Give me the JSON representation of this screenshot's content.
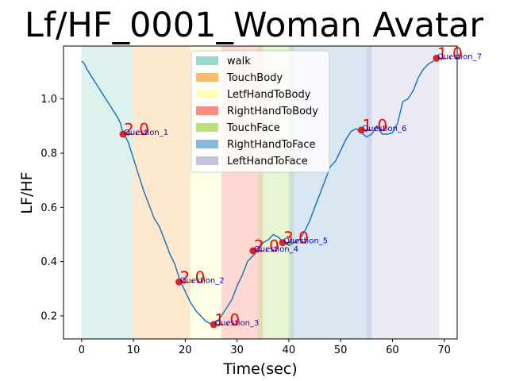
{
  "chart_data": {
    "type": "line",
    "title": "Lf/HF_0001_Woman Avatar",
    "xlabel": "Time(sec)",
    "ylabel": "LF/HF",
    "xlim": [
      -3.5,
      72.5
    ],
    "ylim": [
      0.115,
      1.195
    ],
    "xticks": [
      0,
      10,
      20,
      30,
      40,
      50,
      60,
      70
    ],
    "yticks": [
      0.2,
      0.4,
      0.6,
      0.8,
      1.0
    ],
    "ytick_labels": [
      "0.2",
      "0.4",
      "0.6",
      "0.8",
      "1.0"
    ],
    "grid": false,
    "legend_placement": "upper-center",
    "line_color": "#1f77b4",
    "series": [
      {
        "x": [
          0,
          0.5,
          1,
          2,
          3,
          4,
          5,
          6,
          7,
          7.5,
          8,
          8.5,
          9,
          10,
          11,
          12,
          13,
          14,
          15,
          16,
          17,
          18,
          19,
          20,
          21,
          22,
          23,
          24,
          25,
          25.5,
          26,
          27,
          28,
          29,
          30,
          31,
          32,
          33,
          34,
          35,
          36,
          37,
          38,
          39,
          40,
          41,
          42,
          43,
          44,
          45,
          46,
          47,
          48,
          49,
          50,
          51,
          52,
          53,
          54,
          55,
          56,
          57,
          58,
          59,
          60,
          61,
          62,
          63,
          64,
          65,
          66,
          67,
          68,
          68.5
        ],
        "y": [
          1.14,
          1.13,
          1.11,
          1.08,
          1.05,
          1.02,
          0.99,
          0.96,
          0.93,
          0.91,
          0.87,
          0.86,
          0.84,
          0.78,
          0.72,
          0.66,
          0.61,
          0.56,
          0.53,
          0.48,
          0.43,
          0.39,
          0.33,
          0.29,
          0.25,
          0.22,
          0.2,
          0.18,
          0.17,
          0.168,
          0.175,
          0.2,
          0.23,
          0.26,
          0.31,
          0.35,
          0.4,
          0.42,
          0.44,
          0.47,
          0.48,
          0.5,
          0.49,
          0.47,
          0.46,
          0.47,
          0.48,
          0.51,
          0.55,
          0.6,
          0.65,
          0.7,
          0.75,
          0.77,
          0.81,
          0.85,
          0.88,
          0.89,
          0.875,
          0.86,
          0.87,
          0.9,
          0.87,
          0.87,
          0.875,
          0.91,
          0.99,
          1.0,
          1.03,
          1.08,
          1.11,
          1.13,
          1.14,
          1.15
        ]
      }
    ],
    "phases": [
      {
        "name": "walk",
        "color": "#8dd3c7",
        "start": 0,
        "end": 10
      },
      {
        "name": "TouchBody",
        "color": "#fdb462",
        "start": 10,
        "end": 21
      },
      {
        "name": "LetfHandToBody",
        "color": "#ffffb3",
        "start": 21,
        "end": 27
      },
      {
        "name": "RightHandToBody",
        "color": "#fb8072",
        "start": 27,
        "end": 35
      },
      {
        "name": "TouchFace",
        "color": "#b3de69",
        "start": 34,
        "end": 41
      },
      {
        "name": "RightHandToFace",
        "color": "#80b1d3",
        "start": 40,
        "end": 56
      },
      {
        "name": "LeftHandToFace",
        "color": "#bebada",
        "start": 55,
        "end": 69
      }
    ],
    "questions": [
      {
        "label": "Question_1",
        "x": 8,
        "y": 0.87,
        "score": "2.0"
      },
      {
        "label": "Question_2",
        "x": 18.8,
        "y": 0.325,
        "score": "2.0"
      },
      {
        "label": "Question_3",
        "x": 25.5,
        "y": 0.168,
        "score": "1.0"
      },
      {
        "label": "Question_4",
        "x": 33.1,
        "y": 0.44,
        "score": "2.0"
      },
      {
        "label": "Question_5",
        "x": 38.8,
        "y": 0.47,
        "score": "3.0"
      },
      {
        "label": "Question_6",
        "x": 54,
        "y": 0.885,
        "score": "1.0"
      },
      {
        "label": "Question_7",
        "x": 68.5,
        "y": 1.15,
        "score": "1.0"
      }
    ],
    "marker_color": "#d62728",
    "question_label_color": "#0000cc",
    "score_label_color": "#ff0000"
  }
}
